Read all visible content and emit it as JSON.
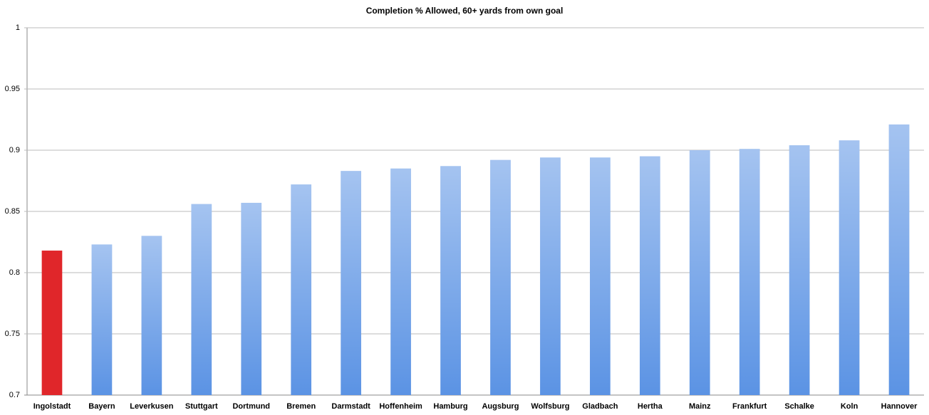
{
  "chart_data": {
    "type": "bar",
    "title": "Completion % Allowed, 60+ yards from own goal",
    "categories": [
      "Ingolstadt",
      "Bayern",
      "Leverkusen",
      "Stuttgart",
      "Dortmund",
      "Bremen",
      "Darmstadt",
      "Hoffenheim",
      "Hamburg",
      "Augsburg",
      "Wolfsburg",
      "Gladbach",
      "Hertha",
      "Mainz",
      "Frankfurt",
      "Schalke",
      "Koln",
      "Hannover"
    ],
    "values": [
      0.818,
      0.823,
      0.83,
      0.856,
      0.857,
      0.872,
      0.883,
      0.885,
      0.887,
      0.892,
      0.894,
      0.894,
      0.895,
      0.9,
      0.901,
      0.904,
      0.908,
      0.921
    ],
    "colors": [
      "#e0262a",
      "#5b93e4",
      "#5b93e4",
      "#5b93e4",
      "#5b93e4",
      "#5b93e4",
      "#5b93e4",
      "#5b93e4",
      "#5b93e4",
      "#5b93e4",
      "#5b93e4",
      "#5b93e4",
      "#5b93e4",
      "#5b93e4",
      "#5b93e4",
      "#5b93e4",
      "#5b93e4",
      "#5b93e4"
    ],
    "ylim": [
      0.7,
      1
    ],
    "yticks": [
      0.7,
      0.75,
      0.8,
      0.85,
      0.9,
      0.95,
      1
    ],
    "grid": true
  }
}
